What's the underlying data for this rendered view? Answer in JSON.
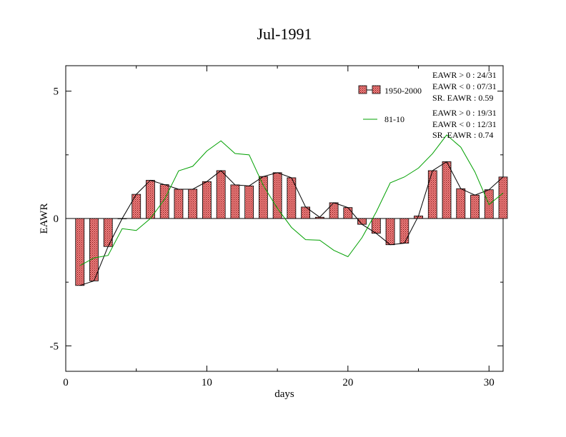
{
  "chart_data": {
    "type": "bar",
    "title": "Jul-1991",
    "xlabel": "days",
    "ylabel": "EAWR",
    "xlim": [
      0,
      31
    ],
    "ylim": [
      -6,
      6
    ],
    "x_ticks": [
      0,
      10,
      20,
      30
    ],
    "y_ticks": [
      -5,
      0,
      5
    ],
    "x": [
      1,
      2,
      3,
      4,
      5,
      6,
      7,
      8,
      9,
      10,
      11,
      12,
      13,
      14,
      15,
      16,
      17,
      18,
      19,
      20,
      21,
      22,
      23,
      24,
      25,
      26,
      27,
      28,
      29,
      30,
      31
    ],
    "series": [
      {
        "name": "1950-2000",
        "kind": "bar",
        "values": [
          -2.63,
          -2.45,
          -1.1,
          0.0,
          0.95,
          1.5,
          1.33,
          1.15,
          1.15,
          1.45,
          1.88,
          1.32,
          1.28,
          1.65,
          1.8,
          1.6,
          0.45,
          0.05,
          0.62,
          0.43,
          -0.23,
          -0.58,
          -1.03,
          -0.97,
          0.1,
          1.88,
          2.23,
          1.17,
          0.92,
          1.13,
          1.63
        ],
        "color": "#e06060"
      },
      {
        "name": "81-10",
        "kind": "line",
        "values": [
          -1.85,
          -1.55,
          -1.45,
          -0.4,
          -0.47,
          0.0,
          0.75,
          1.87,
          2.05,
          2.65,
          3.05,
          2.55,
          2.5,
          1.3,
          0.4,
          -0.35,
          -0.83,
          -0.85,
          -1.25,
          -1.5,
          -0.75,
          0.25,
          1.4,
          1.63,
          1.98,
          2.55,
          3.28,
          2.8,
          1.83,
          0.55,
          1.0
        ],
        "color": "#00a000"
      }
    ],
    "legend_position": "top-right",
    "stats": {
      "p1": [
        "EAWR > 0 : 24/31",
        "EAWR < 0 : 07/31",
        "SR. EAWR :  0.59"
      ],
      "p2": [
        "EAWR > 0 : 19/31",
        "EAWR < 0 : 12/31",
        "SR. EAWR :  0.74"
      ]
    },
    "grid": false
  }
}
